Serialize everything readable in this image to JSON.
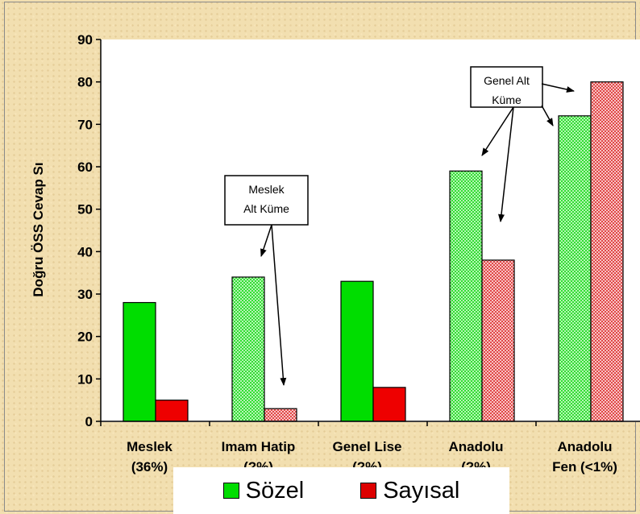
{
  "chart_data": {
    "type": "bar",
    "ylabel": "Doğru ÖSS Cevap Sı",
    "ylim": [
      0,
      90
    ],
    "yticks": [
      0,
      10,
      20,
      30,
      40,
      50,
      60,
      70,
      80,
      90
    ],
    "grid": false,
    "legend_position": "bottom",
    "categories": [
      [
        "Meslek",
        "(36%)"
      ],
      [
        "Imam Hatip",
        "(?%)"
      ],
      [
        "Genel Lise",
        "(?%)"
      ],
      [
        "Anadolu",
        "(?%)"
      ],
      [
        "Anadolu",
        "Fen (<1%)"
      ]
    ],
    "series": [
      {
        "name": "Sözel",
        "values": [
          28,
          34,
          33,
          59,
          72
        ],
        "color": "#00dd00",
        "light_color": "#9bf09b"
      },
      {
        "name": "Sayısal",
        "values": [
          5,
          3,
          8,
          38,
          80
        ],
        "color": "#ee0000",
        "light_color": "#f3a4a4"
      }
    ],
    "hatched_categories": [
      1,
      3,
      4
    ],
    "annotations": [
      {
        "lines": [
          "Meslek",
          "Alt Küme"
        ],
        "targets": [
          "Imam Hatip Sözel",
          "Imam Hatip Sayısal"
        ]
      },
      {
        "lines": [
          "Genel Alt",
          "Küme"
        ],
        "targets": [
          "Anadolu Sözel",
          "Anadolu Sayısal",
          "Anadolu Fen Sözel",
          "Anadolu Fen Sayısal"
        ]
      }
    ]
  },
  "legend": [
    {
      "label": "Sözel",
      "color": "#00dd00"
    },
    {
      "label": "Sayısal",
      "color": "#dd0000"
    }
  ]
}
